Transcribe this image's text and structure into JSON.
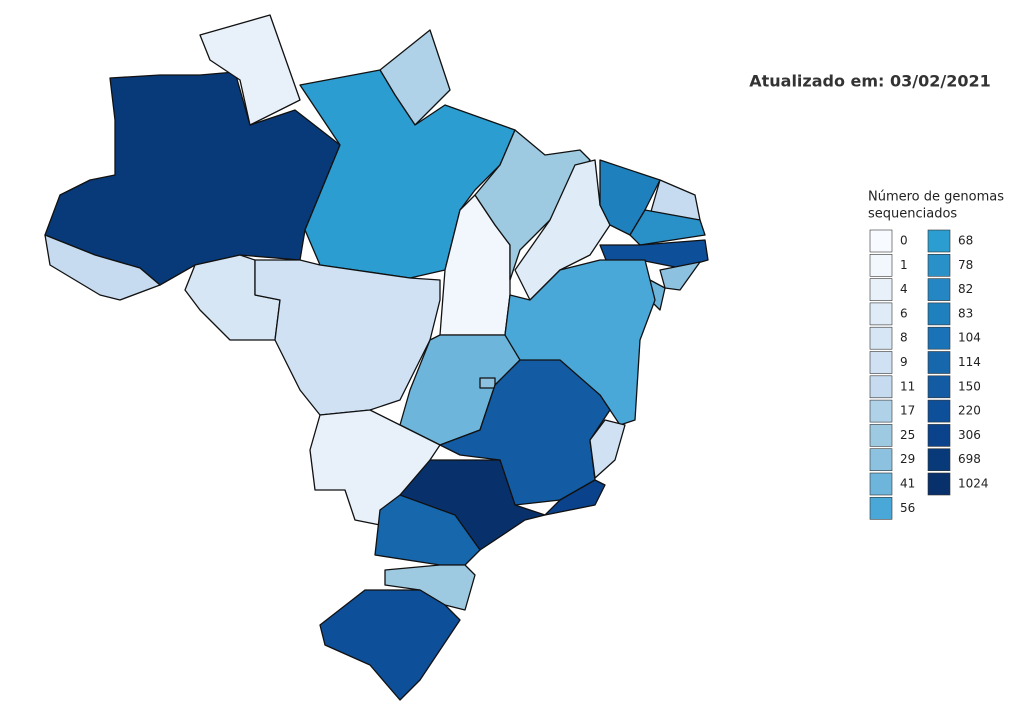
{
  "header": {
    "title": "Atualizado em: 03/02/2021"
  },
  "legend": {
    "title": [
      "Número de genomas",
      "sequenciados"
    ],
    "items": [
      {
        "value": 0,
        "color": "#f7fbff"
      },
      {
        "value": 1,
        "color": "#f1f7fd"
      },
      {
        "value": 4,
        "color": "#e8f1fa"
      },
      {
        "value": 6,
        "color": "#dfecf7"
      },
      {
        "value": 8,
        "color": "#d6e6f4"
      },
      {
        "value": 9,
        "color": "#cfe1f2"
      },
      {
        "value": 11,
        "color": "#c6dbef"
      },
      {
        "value": 17,
        "color": "#b0d2e8"
      },
      {
        "value": 25,
        "color": "#9ecae1"
      },
      {
        "value": 29,
        "color": "#8cc2e0"
      },
      {
        "value": 41,
        "color": "#6eb5dc"
      },
      {
        "value": 56,
        "color": "#4aa8d8"
      },
      {
        "value": 68,
        "color": "#2b9dd0"
      },
      {
        "value": 78,
        "color": "#2a90c8"
      },
      {
        "value": 82,
        "color": "#2487c4"
      },
      {
        "value": 83,
        "color": "#1f80be"
      },
      {
        "value": 104,
        "color": "#1a73b6"
      },
      {
        "value": 114,
        "color": "#1767ad"
      },
      {
        "value": 150,
        "color": "#135ca3"
      },
      {
        "value": 220,
        "color": "#0e4f99"
      },
      {
        "value": 306,
        "color": "#0b428c"
      },
      {
        "value": 698,
        "color": "#083a7a"
      },
      {
        "value": 1024,
        "color": "#08306b"
      }
    ]
  },
  "region_values": [
    698,
    4,
    17,
    68,
    11,
    8,
    9,
    1,
    25,
    6,
    83,
    11,
    78,
    220,
    29,
    41,
    56,
    41,
    29,
    150,
    9,
    306,
    1024,
    4,
    114,
    25,
    220
  ]
}
